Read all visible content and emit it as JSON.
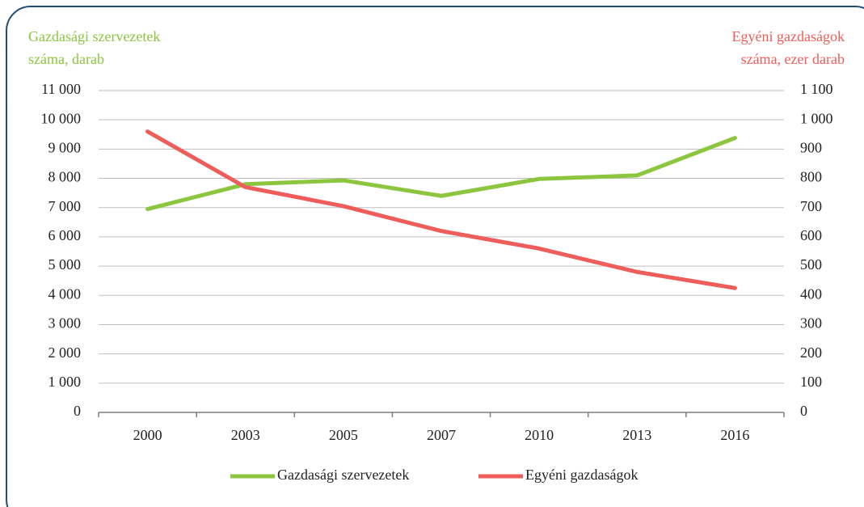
{
  "chart_data": {
    "type": "line",
    "y_label": [
      "Gazdasági szervezetek",
      "száma, darab"
    ],
    "y2_label": [
      "Egyéni gazdaságok",
      "száma, ezer darab"
    ],
    "categories": [
      "2000",
      "2003",
      "2005",
      "2007",
      "2010",
      "2013",
      "2016"
    ],
    "series": [
      {
        "name": "Gazdasági szervezetek",
        "color": "#8cc63e",
        "values": [
          6950,
          7800,
          7930,
          7400,
          7980,
          8100,
          9380
        ]
      },
      {
        "name": "Egyéni gazdaságok",
        "color": "#ee5d5a",
        "axis": "y2",
        "values": [
          960,
          770,
          705,
          620,
          560,
          480,
          425
        ]
      }
    ],
    "ylim": [
      0,
      11000
    ],
    "yticks": [
      0,
      {
        "value": 1000,
        "label": "1 000"
      },
      {
        "value": 2000,
        "label": "2 000"
      },
      {
        "value": 3000,
        "label": "3 000"
      },
      {
        "value": 4000,
        "label": "4 000"
      },
      {
        "value": 5000,
        "label": "5 000"
      },
      {
        "value": 6000,
        "label": "6 000"
      },
      {
        "value": 7000,
        "label": "7 000"
      },
      {
        "value": 8000,
        "label": "8 000"
      },
      {
        "value": 9000,
        "label": "9 000"
      },
      {
        "value": 10000,
        "label": "10 000"
      },
      {
        "value": 11000,
        "label": "11 000"
      }
    ],
    "y2lim": [
      0,
      1100
    ],
    "y2ticks": [
      0,
      100,
      200,
      300,
      400,
      500,
      600,
      700,
      800,
      900,
      {
        "value": 1000,
        "label": "1 000"
      },
      {
        "value": 1100,
        "label": "1 100"
      }
    ],
    "grid": true,
    "legend": "bottom"
  }
}
